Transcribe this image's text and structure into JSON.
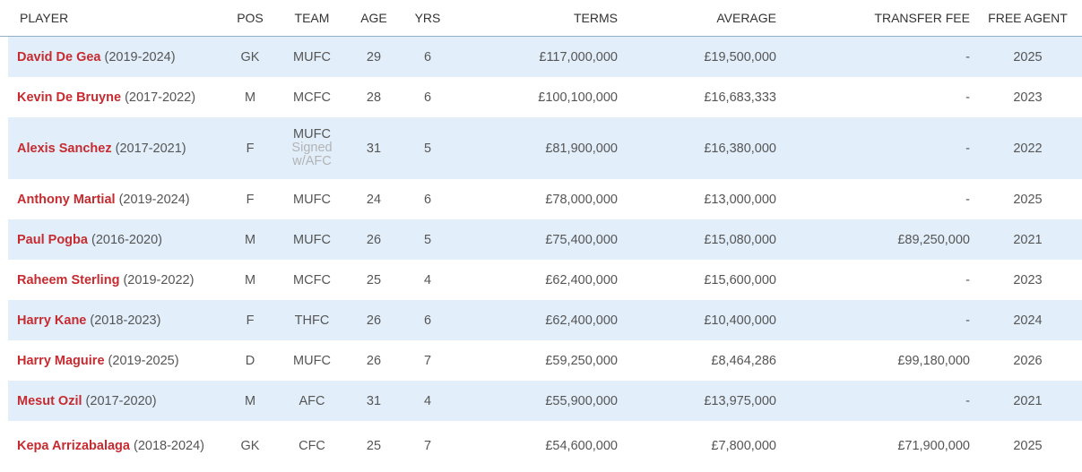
{
  "columns": {
    "player": "PLAYER",
    "pos": "POS",
    "team": "TEAM",
    "age": "AGE",
    "yrs": "YRS",
    "terms": "TERMS",
    "average": "AVERAGE",
    "transfer_fee": "TRANSFER FEE",
    "free_agent": "FREE AGENT"
  },
  "rows": [
    {
      "name": "David De Gea",
      "years": "(2019-2024)",
      "pos": "GK",
      "team": "MUFC",
      "age": "29",
      "yrs": "6",
      "terms": "£117,000,000",
      "average": "£19,500,000",
      "fee": "-",
      "free_agent": "2025"
    },
    {
      "name": "Kevin De Bruyne",
      "years": "(2017-2022)",
      "pos": "M",
      "team": "MCFC",
      "age": "28",
      "yrs": "6",
      "terms": "£100,100,000",
      "average": "£16,683,333",
      "fee": "-",
      "free_agent": "2023"
    },
    {
      "name": "Alexis Sanchez",
      "years": "(2017-2021)",
      "pos": "F",
      "team": "MUFC",
      "team_note_1": "Signed",
      "team_note_2": "w/AFC",
      "age": "31",
      "yrs": "5",
      "terms": "£81,900,000",
      "average": "£16,380,000",
      "fee": "-",
      "free_agent": "2022"
    },
    {
      "name": "Anthony Martial",
      "years": "(2019-2024)",
      "pos": "F",
      "team": "MUFC",
      "age": "24",
      "yrs": "6",
      "terms": "£78,000,000",
      "average": "£13,000,000",
      "fee": "-",
      "free_agent": "2025"
    },
    {
      "name": "Paul Pogba",
      "years": "(2016-2020)",
      "pos": "M",
      "team": "MUFC",
      "age": "26",
      "yrs": "5",
      "terms": "£75,400,000",
      "average": "£15,080,000",
      "fee": "£89,250,000",
      "free_agent": "2021"
    },
    {
      "name": "Raheem Sterling",
      "years": "(2019-2022)",
      "pos": "M",
      "team": "MCFC",
      "age": "25",
      "yrs": "4",
      "terms": "£62,400,000",
      "average": "£15,600,000",
      "fee": "-",
      "free_agent": "2023"
    },
    {
      "name": "Harry Kane",
      "years": "(2018-2023)",
      "pos": "F",
      "team": "THFC",
      "age": "26",
      "yrs": "6",
      "terms": "£62,400,000",
      "average": "£10,400,000",
      "fee": "-",
      "free_agent": "2024"
    },
    {
      "name": "Harry Maguire",
      "years": "(2019-2025)",
      "pos": "D",
      "team": "MUFC",
      "age": "26",
      "yrs": "7",
      "terms": "£59,250,000",
      "average": "£8,464,286",
      "fee": "£99,180,000",
      "free_agent": "2026"
    },
    {
      "name": "Mesut Ozil",
      "years": "(2017-2020)",
      "pos": "M",
      "team": "AFC",
      "age": "31",
      "yrs": "4",
      "terms": "£55,900,000",
      "average": "£13,975,000",
      "fee": "-",
      "free_agent": "2021"
    },
    {
      "name": "Kepa Arrizabalaga",
      "years": "(2018-2024)",
      "pos": "GK",
      "team": "CFC",
      "age": "25",
      "yrs": "7",
      "terms": "£54,600,000",
      "average": "£7,800,000",
      "fee": "£71,900,000",
      "free_agent": "2025"
    }
  ],
  "colors": {
    "link": "#c62b30",
    "alt_row": "#e2effb",
    "header_border": "#8fb0c8"
  }
}
